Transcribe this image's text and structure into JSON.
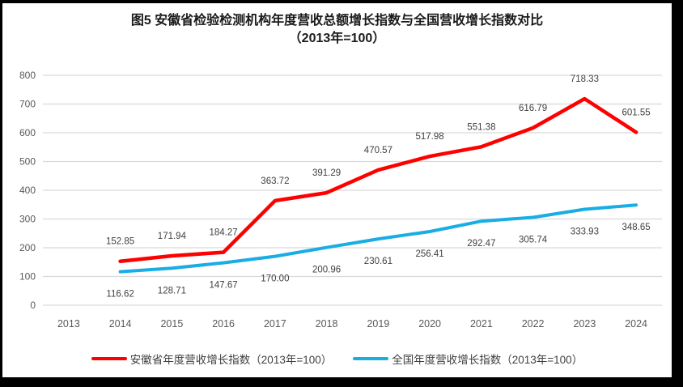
{
  "title": {
    "line1": "图5  安徽省检验检测机构年度营收总额增长指数与全国营收增长指数对比",
    "line2": "（2013年=100）"
  },
  "chart_data": {
    "type": "line",
    "title": "图5 安徽省检验检测机构年度营收总额增长指数与全国营收增长指数对比（2013年=100）",
    "categories": [
      "2013",
      "2014",
      "2015",
      "2016",
      "2017",
      "2018",
      "2019",
      "2020",
      "2021",
      "2022",
      "2023",
      "2024"
    ],
    "ylim": [
      0,
      800
    ],
    "ytick_step": 100,
    "grid": true,
    "legend_position": "bottom",
    "series": [
      {
        "name": "安徽省年度营收增长指数（2013年=100）",
        "color": "#FF0000",
        "start_category": "2014",
        "values": [
          152.85,
          171.94,
          184.27,
          363.72,
          391.29,
          470.57,
          517.98,
          551.38,
          616.79,
          718.33,
          601.55
        ],
        "labels": [
          "152.85",
          "171.94",
          "184.27",
          "363.72",
          "391.29",
          "470.57",
          "517.98",
          "551.38",
          "616.79",
          "718.33",
          "601.55"
        ],
        "label_position": "above"
      },
      {
        "name": "全国年度营收增长指数（2013年=100）",
        "color": "#1AADE4",
        "start_category": "2014",
        "values": [
          116.62,
          128.71,
          147.67,
          170.0,
          200.96,
          230.61,
          256.41,
          292.47,
          305.74,
          333.93,
          348.65
        ],
        "labels": [
          "116.62",
          "128.71",
          "147.67",
          "170.00",
          "200.96",
          "230.61",
          "256.41",
          "292.47",
          "305.74",
          "333.93",
          "348.65"
        ],
        "label_position": "below"
      }
    ],
    "colors": {
      "gridline": "#D9D9D9",
      "axis_label": "#595959",
      "tick_label": "#595959",
      "data_label": "#404040"
    }
  }
}
